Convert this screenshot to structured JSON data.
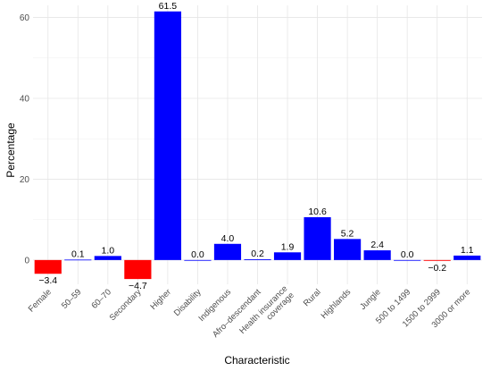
{
  "chart_data": {
    "type": "bar",
    "xlabel": "Characteristic",
    "ylabel": "Percentage",
    "ylim": [
      -6,
      63
    ],
    "yticks": [
      0,
      20,
      40,
      60
    ],
    "grid": true,
    "categories": [
      "Female",
      "50–59",
      "60–70",
      "Secondary",
      "Higher",
      "Disability",
      "Indigenous",
      "Afro–descendant",
      "Health insurance coverage",
      "Rural",
      "Highlands",
      "Jungle",
      "500 to 1499",
      "1500 to 2999",
      "3000 or more"
    ],
    "category_lines": [
      [
        "Female"
      ],
      [
        "50–59"
      ],
      [
        "60–70"
      ],
      [
        "Secondary"
      ],
      [
        "Higher"
      ],
      [
        "Disability"
      ],
      [
        "Indigenous"
      ],
      [
        "Afro–descendant"
      ],
      [
        "Health insurance",
        "coverage"
      ],
      [
        "Rural"
      ],
      [
        "Highlands"
      ],
      [
        "Jungle"
      ],
      [
        "500 to 1499"
      ],
      [
        "1500 to 2999"
      ],
      [
        "3000 or more"
      ]
    ],
    "values": [
      -3.4,
      0.1,
      1.0,
      -4.7,
      61.5,
      0.0,
      4.0,
      0.2,
      1.9,
      10.6,
      5.2,
      2.4,
      0.0,
      -0.2,
      1.1
    ],
    "value_labels": [
      "−3.4",
      "0.1",
      "1.0",
      "−4.7",
      "61.5",
      "0.0",
      "4.0",
      "0.2",
      "1.9",
      "10.6",
      "5.2",
      "2.4",
      "0.0",
      "−0.2",
      "1.1"
    ],
    "colors": {
      "positive": "#0000ff",
      "negative": "#ff0000"
    }
  }
}
